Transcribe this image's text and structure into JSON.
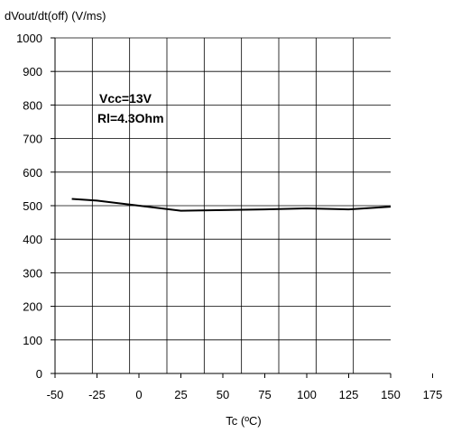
{
  "chart_data": {
    "type": "line",
    "ylabel": "dVout/dt(off) (V/ms)",
    "xlabel": "Tc (ºC)",
    "xlim": [
      -50,
      175
    ],
    "ylim": [
      0,
      1000
    ],
    "x_ticks": [
      "-50",
      "-25",
      "0",
      "25",
      "50",
      "75",
      "100",
      "125",
      "150",
      "175"
    ],
    "y_ticks": [
      "0",
      "100",
      "200",
      "300",
      "400",
      "500",
      "600",
      "700",
      "800",
      "900",
      "1000"
    ],
    "grid": true,
    "annotations": [
      "Vcc=13V",
      "Rl=4.3Ohm"
    ],
    "series": [
      {
        "x": [
          -40,
          -25,
          0,
          25,
          50,
          75,
          100,
          125,
          150
        ],
        "y": [
          520,
          515,
          500,
          485,
          487,
          489,
          492,
          489,
          497
        ]
      }
    ]
  },
  "colors": {
    "line": "#000000",
    "grid": "#000000",
    "axis": "#000000"
  }
}
